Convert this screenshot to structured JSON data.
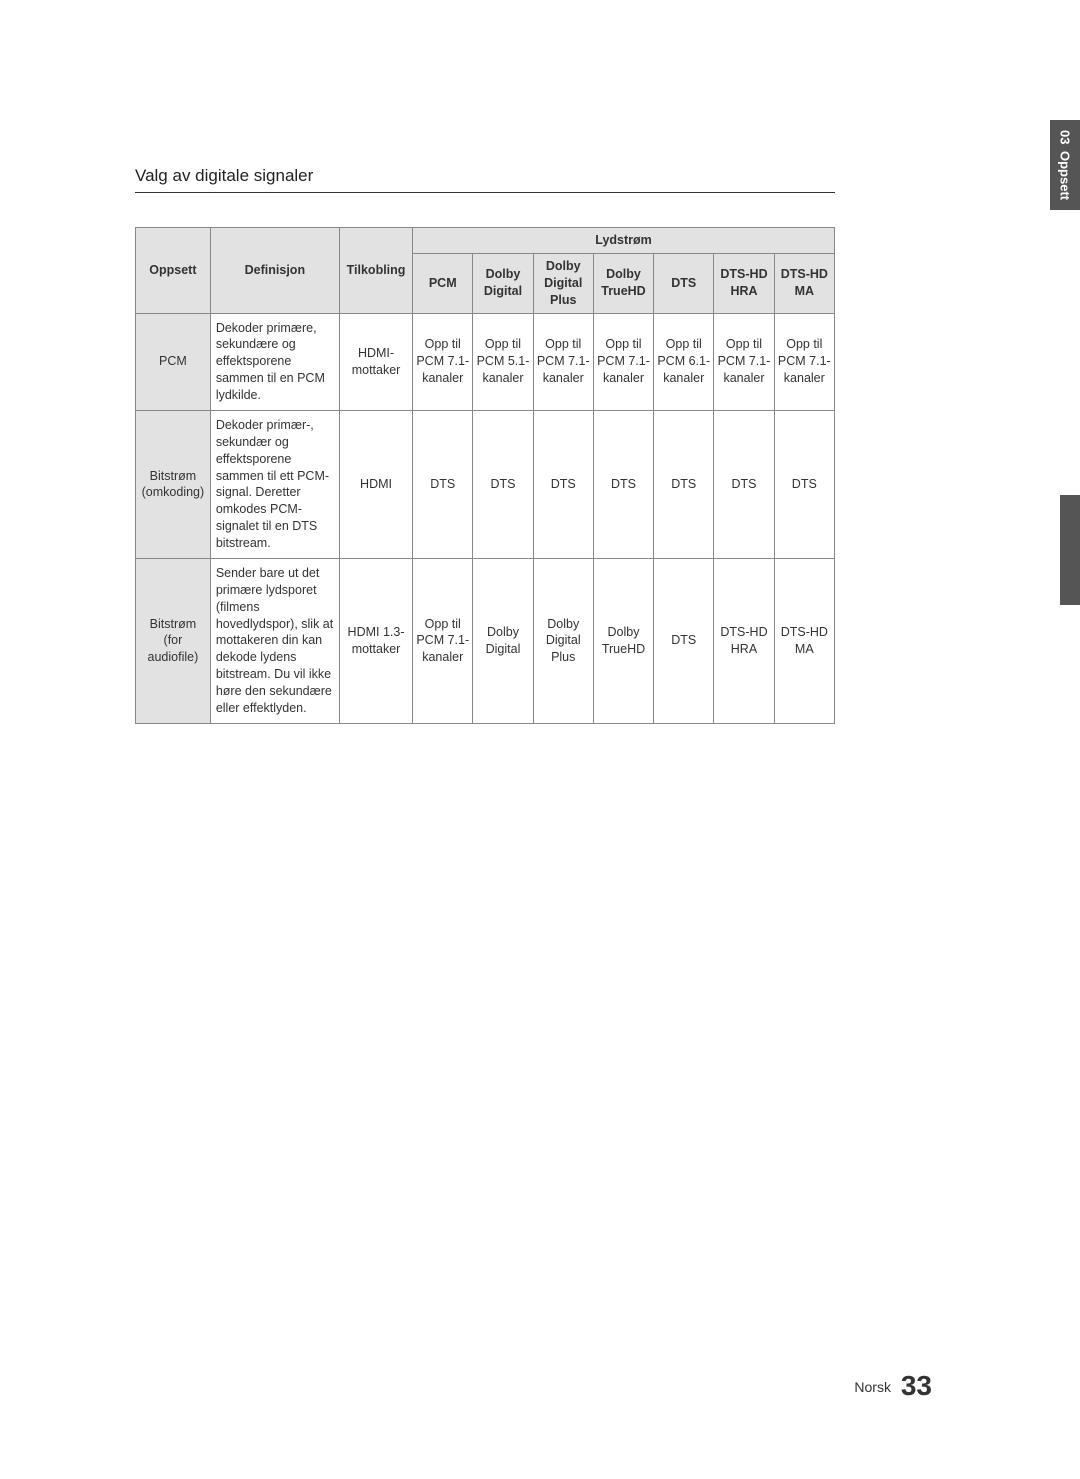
{
  "sideTab": {
    "chapter": "03",
    "label": "Oppsett"
  },
  "section": {
    "title": "Valg av digitale signaler"
  },
  "table": {
    "headers": {
      "oppsett": "Oppsett",
      "definisjon": "Definisjon",
      "tilkobling": "Tilkobling",
      "lydstrom": "Lydstrøm",
      "cols": [
        "PCM",
        "Dolby Digital",
        "Dolby Digital Plus",
        "Dolby TrueHD",
        "DTS",
        "DTS-HD HRA",
        "DTS-HD MA"
      ]
    },
    "rows": [
      {
        "oppsett": "PCM",
        "definisjon": "Dekoder primære, sekundære og effektsporene sammen til en PCM lydkilde.",
        "tilkobling": "HDMI-mottaker",
        "cells": [
          "Opp til PCM 7.1-kanaler",
          "Opp til PCM 5.1-kanaler",
          "Opp til PCM 7.1-kanaler",
          "Opp til PCM 7.1-kanaler",
          "Opp til PCM 6.1-kanaler",
          "Opp til PCM 7.1-kanaler",
          "Opp til PCM 7.1-kanaler"
        ]
      },
      {
        "oppsett": "Bitstrøm (omkoding)",
        "definisjon": "Dekoder primær-, sekundær og effektsporene sammen til ett PCM-signal. Deretter omkodes PCM-signalet til en DTS bitstream.",
        "tilkobling": "HDMI",
        "cells": [
          "DTS",
          "DTS",
          "DTS",
          "DTS",
          "DTS",
          "DTS",
          "DTS"
        ]
      },
      {
        "oppsett": "Bitstrøm (for audiofile)",
        "definisjon": "Sender bare ut det primære lydsporet (filmens hovedlydspor), slik at mottakeren din kan dekode lydens bitstream. Du vil ikke høre den sekundære eller effektlyden.",
        "tilkobling": "HDMI 1.3-mottaker",
        "cells": [
          "Opp til PCM 7.1-kanaler",
          "Dolby Digital",
          "Dolby Digital Plus",
          "Dolby TrueHD",
          "DTS",
          "DTS-HD HRA",
          "DTS-HD MA"
        ]
      }
    ]
  },
  "footer": {
    "language": "Norsk",
    "pageNumber": "33"
  },
  "colors": {
    "headerBg": "#e2e2e2",
    "border": "#888888",
    "tabBg": "#555555",
    "text": "#333333"
  }
}
